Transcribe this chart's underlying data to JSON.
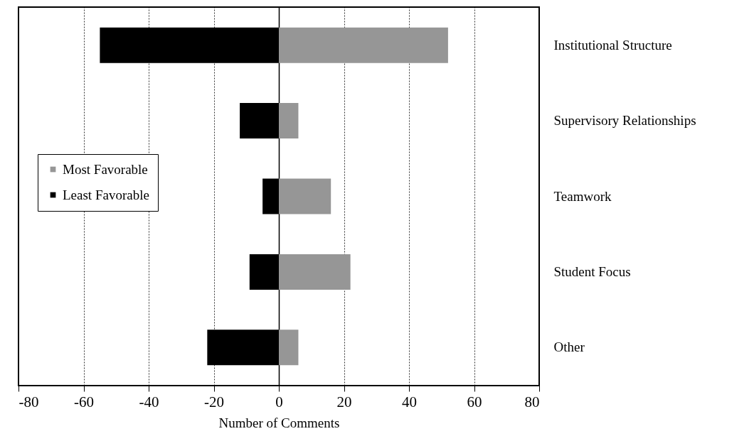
{
  "chart_data": {
    "type": "bar",
    "orientation": "horizontal",
    "stacked": true,
    "categories": [
      "Institutional Structure",
      "Supervisory Relationships",
      "Teamwork",
      "Student Focus",
      "Other"
    ],
    "series": [
      {
        "name": "Most Favorable",
        "color": "#969696",
        "values": [
          52,
          6,
          16,
          22,
          6
        ]
      },
      {
        "name": "Least Favorable",
        "color": "#000000",
        "values": [
          -55,
          -12,
          -5,
          -9,
          -22
        ]
      }
    ],
    "xlabel": "Number of Comments",
    "xlim": [
      -80,
      80
    ],
    "xticks": [
      -80,
      -60,
      -40,
      -20,
      0,
      20,
      40,
      60,
      80
    ],
    "grid": "x",
    "legend": "left"
  }
}
